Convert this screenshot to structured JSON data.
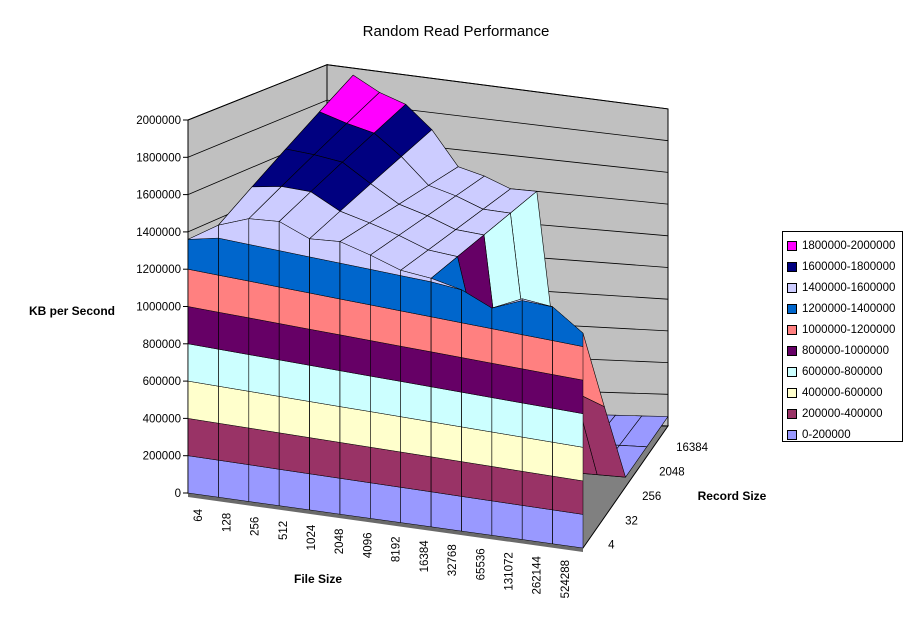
{
  "chart_data": {
    "type": "surface",
    "title": "Random Read Performance",
    "zlabel": "KB per Second",
    "xlabel": "File Size",
    "ylabel": "Record Size",
    "zlim": [
      0,
      2000000
    ],
    "z_ticks": [
      "0",
      "200000",
      "400000",
      "600000",
      "800000",
      "1000000",
      "1200000",
      "1400000",
      "1600000",
      "1800000",
      "2000000"
    ],
    "file_sizes": [
      "64",
      "128",
      "256",
      "512",
      "1024",
      "2048",
      "4096",
      "8192",
      "16384",
      "32768",
      "65536",
      "131072",
      "262144",
      "524288"
    ],
    "record_size_labels": [
      "4",
      "32",
      "256",
      "2048",
      "16384"
    ],
    "grid": true,
    "legend_position": "right",
    "legend": [
      {
        "label": "1800000-2000000",
        "color": "#ff00ff"
      },
      {
        "label": "1600000-1800000",
        "color": "#000080"
      },
      {
        "label": "1400000-1600000",
        "color": "#ccccff"
      },
      {
        "label": "1200000-1400000",
        "color": "#0066cc"
      },
      {
        "label": "1000000-1200000",
        "color": "#ff8080"
      },
      {
        "label": "800000-1000000",
        "color": "#660066"
      },
      {
        "label": "600000-800000",
        "color": "#ccffff"
      },
      {
        "label": "400000-600000",
        "color": "#ffffcc"
      },
      {
        "label": "200000-400000",
        "color": "#993366"
      },
      {
        "label": "0-200000",
        "color": "#9999ff"
      }
    ],
    "front_row_values": [
      1360000,
      1470000,
      1540000,
      1560000,
      1500000,
      1520000,
      1480000,
      1430000,
      1420000,
      1390000,
      1320000,
      1410000,
      1400000,
      1280000
    ],
    "ridge_values": [
      1380000,
      1960000,
      1880000,
      1830000,
      1700000,
      1500000,
      1460000,
      1400000,
      1400000,
      1260000,
      1420000,
      1180000
    ]
  }
}
